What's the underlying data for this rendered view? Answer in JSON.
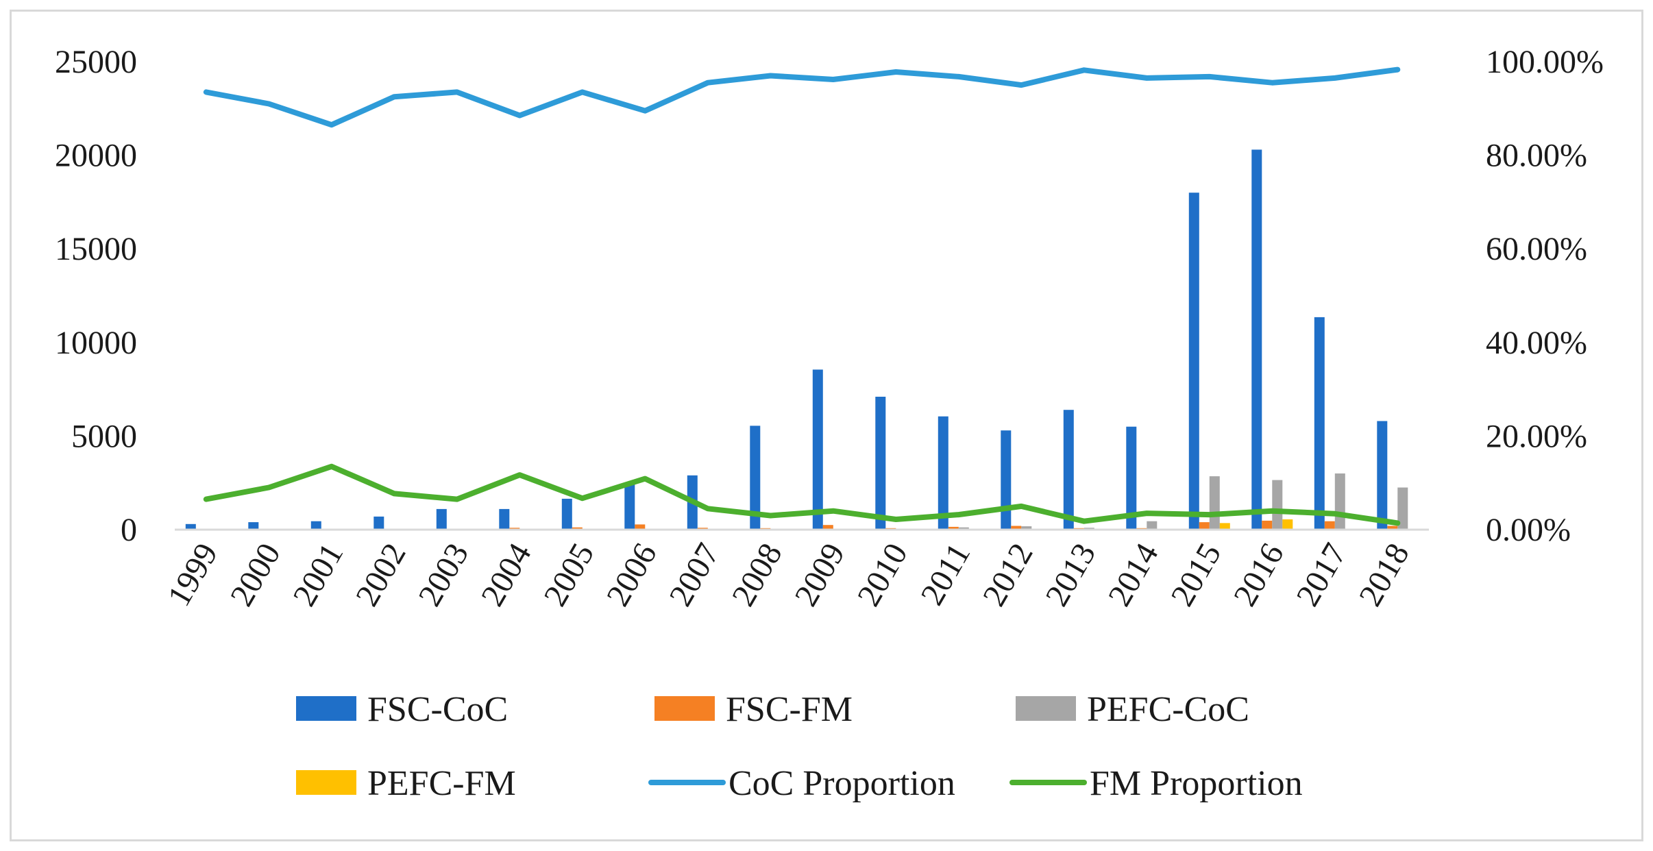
{
  "chart_data": {
    "type": "bar",
    "title": "",
    "xlabel": "",
    "ylabel": "",
    "categories": [
      "1999",
      "2000",
      "2001",
      "2002",
      "2003",
      "2004",
      "2005",
      "2006",
      "2007",
      "2008",
      "2009",
      "2010",
      "2011",
      "2012",
      "2013",
      "2014",
      "2015",
      "2016",
      "2017",
      "2018"
    ],
    "ylim": [
      0,
      25000
    ],
    "y2lim": [
      0,
      1
    ],
    "y_ticks": [
      "0",
      "5000",
      "10000",
      "15000",
      "20000",
      "25000"
    ],
    "y2_ticks": [
      "0.00%",
      "20.00%",
      "40.00%",
      "60.00%",
      "80.00%",
      "100.00%"
    ],
    "grid": false,
    "legend_position": "bottom",
    "bar_series": [
      {
        "name": "FSC-CoC",
        "color": "#1f6fc8",
        "values": [
          300,
          400,
          450,
          700,
          1100,
          1100,
          1650,
          2400,
          2900,
          5550,
          8550,
          7100,
          6050,
          5300,
          6400,
          5500,
          18000,
          20300,
          11350,
          5800
        ]
      },
      {
        "name": "FSC-FM",
        "color": "#f58023",
        "values": [
          0,
          0,
          0,
          0,
          50,
          100,
          120,
          280,
          100,
          80,
          250,
          80,
          150,
          200,
          80,
          80,
          400,
          480,
          450,
          200
        ]
      },
      {
        "name": "PEFC-CoC",
        "color": "#a6a6a6",
        "values": [
          0,
          0,
          0,
          0,
          0,
          0,
          0,
          0,
          0,
          0,
          0,
          0,
          120,
          180,
          100,
          450,
          2850,
          2650,
          3000,
          2250
        ]
      },
      {
        "name": "PEFC-FM",
        "color": "#ffc000",
        "values": [
          0,
          0,
          0,
          0,
          0,
          0,
          0,
          0,
          0,
          0,
          0,
          0,
          0,
          0,
          0,
          0,
          350,
          550,
          0,
          0
        ]
      }
    ],
    "line_series": [
      {
        "name": "CoC Proportion",
        "color": "#2e9bd8",
        "axis": "right",
        "values": [
          0.935,
          0.91,
          0.865,
          0.925,
          0.935,
          0.885,
          0.935,
          0.895,
          0.955,
          0.97,
          0.962,
          0.978,
          0.968,
          0.95,
          0.982,
          0.965,
          0.968,
          0.955,
          0.965,
          0.983
        ]
      },
      {
        "name": "FM Proportion",
        "color": "#4caf2e",
        "axis": "right",
        "values": [
          0.065,
          0.09,
          0.135,
          0.077,
          0.065,
          0.117,
          0.067,
          0.109,
          0.045,
          0.03,
          0.04,
          0.022,
          0.032,
          0.05,
          0.018,
          0.035,
          0.032,
          0.04,
          0.034,
          0.014
        ]
      }
    ]
  },
  "legend": [
    {
      "label": "FSC-CoC",
      "kind": "bar",
      "color": "#1f6fc8"
    },
    {
      "label": "FSC-FM",
      "kind": "bar",
      "color": "#f58023"
    },
    {
      "label": "PEFC-CoC",
      "kind": "bar",
      "color": "#a6a6a6"
    },
    {
      "label": "PEFC-FM",
      "kind": "bar",
      "color": "#ffc000"
    },
    {
      "label": "CoC Proportion",
      "kind": "line",
      "color": "#2e9bd8"
    },
    {
      "label": "FM Proportion",
      "kind": "line",
      "color": "#4caf2e"
    }
  ]
}
